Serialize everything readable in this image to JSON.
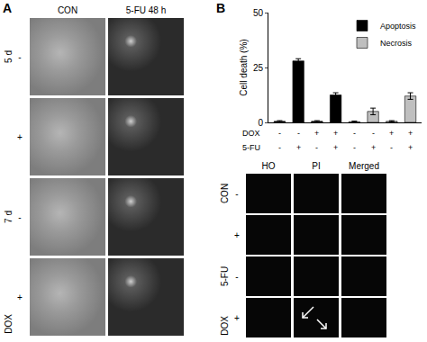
{
  "panel_a": {
    "label": "A",
    "columns": [
      "CON",
      "5-FU 48 h"
    ],
    "row_groups": [
      {
        "label": "5 d",
        "rows": [
          "-",
          "+"
        ]
      },
      {
        "label": "7 d",
        "rows": [
          "-",
          "+"
        ]
      }
    ],
    "side_label": "DOX"
  },
  "panel_b": {
    "label": "B",
    "micrographs": {
      "columns": [
        "HO",
        "PI",
        "Merged"
      ],
      "row_groups": [
        {
          "label": "CON",
          "rows": [
            "-",
            "+"
          ]
        },
        {
          "label": "5-FU",
          "rows": [
            "-",
            "+"
          ]
        }
      ],
      "side_label": "DOX"
    }
  },
  "chart_data": {
    "type": "bar",
    "y_label": "Cell death (%)",
    "categories": [
      null,
      null,
      null,
      null,
      null,
      null,
      null,
      null
    ],
    "series": [
      {
        "name": "Apoptosis",
        "color": "#000000",
        "values": [
          0.5,
          28,
          0.5,
          12.5,
          null,
          null,
          null,
          null
        ],
        "error": [
          0.3,
          1,
          0.3,
          1,
          null,
          null,
          null,
          null
        ]
      },
      {
        "name": "Necrosis",
        "color": "#bfbfbf",
        "values": [
          null,
          null,
          null,
          null,
          0.3,
          5,
          0.5,
          12
        ],
        "error": [
          null,
          null,
          null,
          null,
          0.3,
          1.5,
          0.3,
          1.5
        ]
      }
    ],
    "condition_rows": [
      {
        "label": "DOX",
        "values": [
          "-",
          "-",
          "+",
          "+",
          "-",
          "-",
          "+",
          "+"
        ]
      },
      {
        "label": "5-FU",
        "values": [
          "-",
          "+",
          "-",
          "+",
          "-",
          "+",
          "-",
          "+"
        ]
      }
    ],
    "ylim": [
      0,
      50
    ],
    "yticks": [
      0,
      25,
      50
    ],
    "grid": false,
    "legend": "upper right",
    "tick_labels": "y"
  }
}
